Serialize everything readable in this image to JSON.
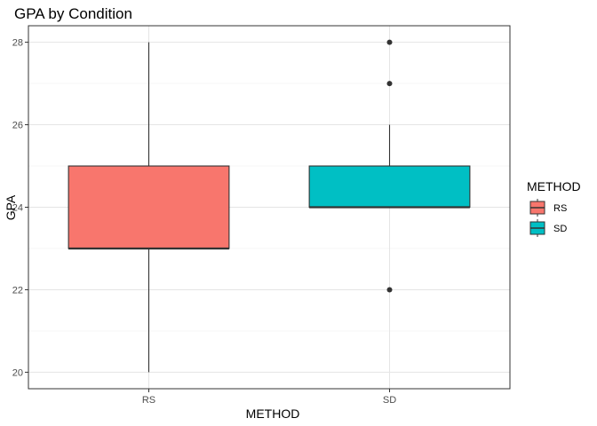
{
  "chart_data": {
    "type": "box",
    "title": "GPA by Condition",
    "xlabel": "METHOD",
    "ylabel": "GPA",
    "ylim": [
      19.6,
      28.4
    ],
    "yticks": [
      "20",
      "22",
      "24",
      "26",
      "28"
    ],
    "grid": true,
    "legend": {
      "title": "METHOD",
      "position": "right",
      "items": [
        {
          "label": "RS",
          "color": "#F8766D"
        },
        {
          "label": "SD",
          "color": "#00BFC4"
        }
      ]
    },
    "categories": [
      "RS",
      "SD"
    ],
    "boxes": [
      {
        "category": "RS",
        "color": "#F8766D",
        "lower_whisker": 20,
        "q1": 23,
        "median": 23,
        "q3": 25,
        "upper_whisker": 28,
        "outliers": []
      },
      {
        "category": "SD",
        "color": "#00BFC4",
        "lower_whisker": 24,
        "q1": 24,
        "median": 24,
        "q3": 25,
        "upper_whisker": 26,
        "outliers": [
          22,
          27,
          28
        ]
      }
    ]
  }
}
